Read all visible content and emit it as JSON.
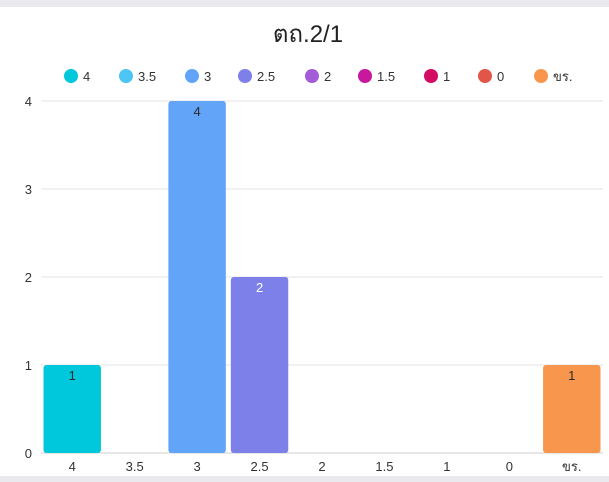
{
  "chart_data": {
    "type": "bar",
    "title": "ตถ.2/1",
    "categories": [
      "4",
      "3.5",
      "3",
      "2.5",
      "2",
      "1.5",
      "1",
      "0",
      "ขร."
    ],
    "values": [
      1,
      0,
      4,
      2,
      0,
      0,
      0,
      0,
      1
    ],
    "data_labels": [
      "1",
      "",
      "4",
      "2",
      "",
      "",
      "",
      "",
      "1"
    ],
    "colors": [
      "#00c8dc",
      "#4cc4f4",
      "#62a4f8",
      "#7c80e8",
      "#a25cd8",
      "#c8189c",
      "#d40c64",
      "#e2564a",
      "#f8964e"
    ],
    "legend": [
      "4",
      "3.5",
      "3",
      "2.5",
      "2",
      "1.5",
      "1",
      "0",
      "ขร."
    ],
    "legend_position": "top",
    "xlabel": "",
    "ylabel": "",
    "ylim": [
      0,
      4
    ],
    "yticks": [
      "0",
      "1",
      "2",
      "3",
      "4"
    ],
    "grid": true
  }
}
